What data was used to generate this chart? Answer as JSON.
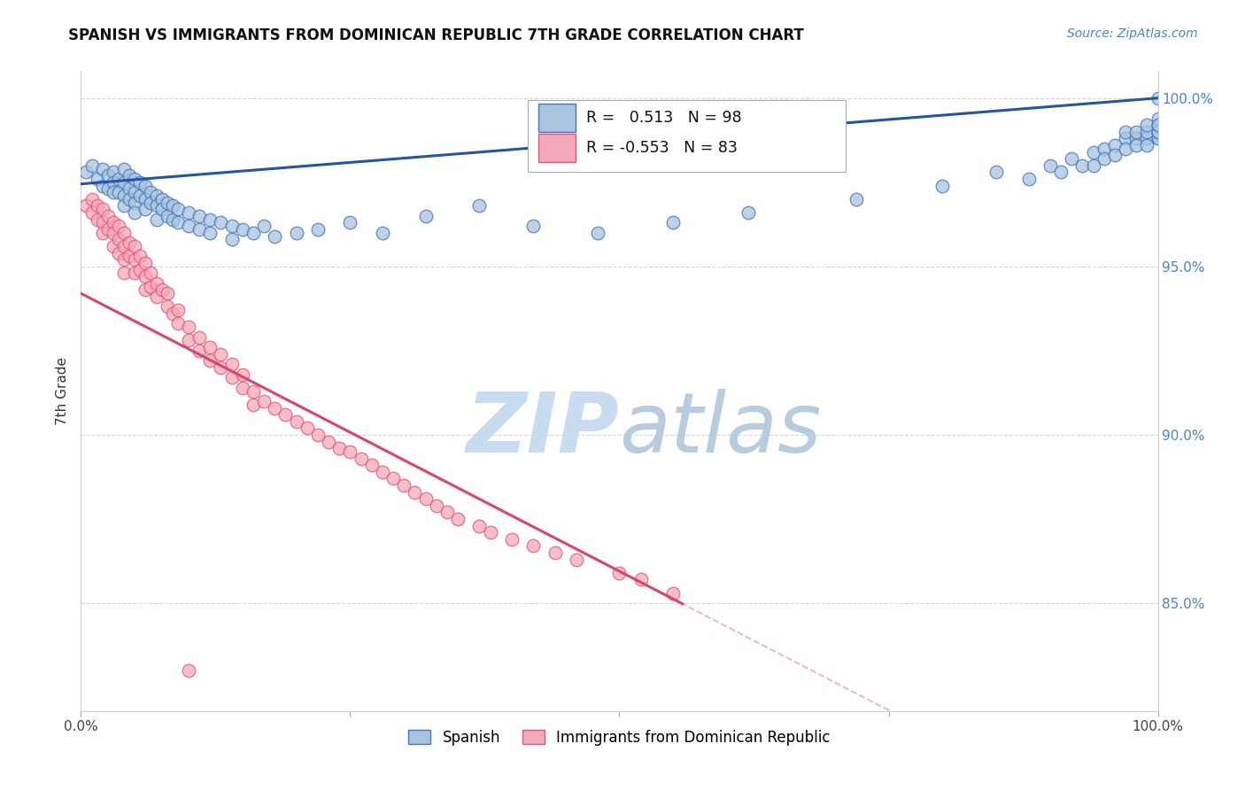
{
  "title": "SPANISH VS IMMIGRANTS FROM DOMINICAN REPUBLIC 7TH GRADE CORRELATION CHART",
  "source": "Source: ZipAtlas.com",
  "ylabel": "7th Grade",
  "xlim": [
    0.0,
    1.0
  ],
  "ylim": [
    0.818,
    1.008
  ],
  "yticks": [
    0.85,
    0.9,
    0.95,
    1.0
  ],
  "ytick_labels": [
    "85.0%",
    "90.0%",
    "95.0%",
    "100.0%"
  ],
  "xticks": [
    0.0,
    0.25,
    0.5,
    0.75,
    1.0
  ],
  "xtick_labels": [
    "0.0%",
    "",
    "",
    "",
    "100.0%"
  ],
  "legend_blue_label": "Spanish",
  "legend_pink_label": "Immigrants from Dominican Republic",
  "r_blue": 0.513,
  "n_blue": 98,
  "r_pink": -0.553,
  "n_pink": 83,
  "blue_fill": "#A8C4E0",
  "pink_fill": "#F5A8B8",
  "blue_edge": "#4477BB",
  "pink_edge": "#E05878",
  "blue_line": "#2255AA",
  "pink_line": "#DD4466",
  "watermark_zip_color": "#C8DCF0",
  "watermark_atlas_color": "#B8CCDF",
  "blue_x": [
    0.005,
    0.01,
    0.015,
    0.02,
    0.02,
    0.025,
    0.025,
    0.03,
    0.03,
    0.03,
    0.035,
    0.035,
    0.04,
    0.04,
    0.04,
    0.04,
    0.045,
    0.045,
    0.045,
    0.05,
    0.05,
    0.05,
    0.05,
    0.055,
    0.055,
    0.06,
    0.06,
    0.06,
    0.065,
    0.065,
    0.07,
    0.07,
    0.07,
    0.075,
    0.075,
    0.08,
    0.08,
    0.085,
    0.085,
    0.09,
    0.09,
    0.1,
    0.1,
    0.11,
    0.11,
    0.12,
    0.12,
    0.13,
    0.14,
    0.14,
    0.15,
    0.16,
    0.17,
    0.18,
    0.2,
    0.22,
    0.25,
    0.28,
    0.32,
    0.37,
    0.42,
    0.48,
    0.55,
    0.62,
    0.72,
    0.8,
    0.85,
    0.88,
    0.9,
    0.91,
    0.92,
    0.93,
    0.94,
    0.94,
    0.95,
    0.95,
    0.96,
    0.96,
    0.97,
    0.97,
    0.97,
    0.98,
    0.98,
    0.98,
    0.99,
    0.99,
    0.99,
    0.99,
    1.0,
    1.0,
    1.0,
    1.0,
    1.0,
    1.0,
    1.0,
    1.0,
    1.0,
    1.0
  ],
  "blue_y": [
    0.978,
    0.98,
    0.976,
    0.979,
    0.974,
    0.977,
    0.973,
    0.978,
    0.975,
    0.972,
    0.976,
    0.972,
    0.979,
    0.975,
    0.971,
    0.968,
    0.977,
    0.973,
    0.97,
    0.976,
    0.972,
    0.969,
    0.966,
    0.975,
    0.971,
    0.974,
    0.97,
    0.967,
    0.972,
    0.969,
    0.971,
    0.968,
    0.964,
    0.97,
    0.967,
    0.969,
    0.965,
    0.968,
    0.964,
    0.967,
    0.963,
    0.966,
    0.962,
    0.965,
    0.961,
    0.964,
    0.96,
    0.963,
    0.962,
    0.958,
    0.961,
    0.96,
    0.962,
    0.959,
    0.96,
    0.961,
    0.963,
    0.96,
    0.965,
    0.968,
    0.962,
    0.96,
    0.963,
    0.966,
    0.97,
    0.974,
    0.978,
    0.976,
    0.98,
    0.978,
    0.982,
    0.98,
    0.984,
    0.98,
    0.985,
    0.982,
    0.986,
    0.983,
    0.988,
    0.985,
    0.99,
    0.988,
    0.986,
    0.99,
    0.988,
    0.986,
    0.99,
    0.992,
    0.988,
    0.99,
    0.992,
    0.988,
    0.99,
    0.992,
    0.994,
    0.99,
    0.992,
    1.0
  ],
  "pink_x": [
    0.005,
    0.01,
    0.01,
    0.015,
    0.015,
    0.02,
    0.02,
    0.02,
    0.025,
    0.025,
    0.03,
    0.03,
    0.03,
    0.035,
    0.035,
    0.035,
    0.04,
    0.04,
    0.04,
    0.04,
    0.045,
    0.045,
    0.05,
    0.05,
    0.05,
    0.055,
    0.055,
    0.06,
    0.06,
    0.06,
    0.065,
    0.065,
    0.07,
    0.07,
    0.075,
    0.08,
    0.08,
    0.085,
    0.09,
    0.09,
    0.1,
    0.1,
    0.11,
    0.11,
    0.12,
    0.12,
    0.13,
    0.13,
    0.14,
    0.14,
    0.15,
    0.15,
    0.16,
    0.16,
    0.17,
    0.18,
    0.19,
    0.2,
    0.21,
    0.22,
    0.23,
    0.24,
    0.25,
    0.26,
    0.27,
    0.28,
    0.29,
    0.3,
    0.31,
    0.32,
    0.33,
    0.34,
    0.35,
    0.37,
    0.38,
    0.4,
    0.42,
    0.44,
    0.46,
    0.5,
    0.52,
    0.55,
    0.1
  ],
  "pink_y": [
    0.968,
    0.97,
    0.966,
    0.968,
    0.964,
    0.967,
    0.963,
    0.96,
    0.965,
    0.961,
    0.963,
    0.96,
    0.956,
    0.962,
    0.958,
    0.954,
    0.96,
    0.956,
    0.952,
    0.948,
    0.957,
    0.953,
    0.956,
    0.952,
    0.948,
    0.953,
    0.949,
    0.951,
    0.947,
    0.943,
    0.948,
    0.944,
    0.945,
    0.941,
    0.943,
    0.942,
    0.938,
    0.936,
    0.937,
    0.933,
    0.932,
    0.928,
    0.929,
    0.925,
    0.926,
    0.922,
    0.924,
    0.92,
    0.921,
    0.917,
    0.918,
    0.914,
    0.913,
    0.909,
    0.91,
    0.908,
    0.906,
    0.904,
    0.902,
    0.9,
    0.898,
    0.896,
    0.895,
    0.893,
    0.891,
    0.889,
    0.887,
    0.885,
    0.883,
    0.881,
    0.879,
    0.877,
    0.875,
    0.873,
    0.871,
    0.869,
    0.867,
    0.865,
    0.863,
    0.859,
    0.857,
    0.853,
    0.83
  ]
}
